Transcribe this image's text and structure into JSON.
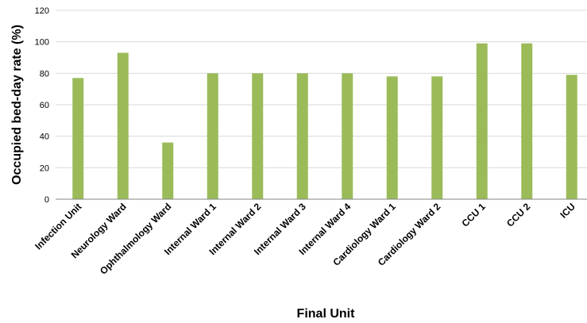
{
  "chart_data": {
    "type": "bar",
    "categories": [
      "Infection Unit",
      "Neurology Ward",
      "Ophthalmology Ward",
      "Internal Ward 1",
      "Internal Ward 2",
      "Internal Ward 3",
      "Internal Ward 4",
      "Cardiology Ward 1",
      "Cardiology Ward 2",
      "CCU 1",
      "CCU 2",
      "ICU"
    ],
    "values": [
      77,
      93,
      36,
      80,
      80,
      80,
      80,
      78,
      78,
      99,
      99,
      79
    ],
    "xlabel": "Final Unit",
    "ylabel": "Occupied bed-day rate (%)",
    "ylim": [
      0,
      120
    ],
    "yticks": [
      "0",
      "20",
      "40",
      "60",
      "80",
      "100",
      "120"
    ],
    "grid": true,
    "legend": "none",
    "bar_color": "#9bbb59",
    "grid_color": "#d9d9d9",
    "axis_color": "#868686"
  }
}
